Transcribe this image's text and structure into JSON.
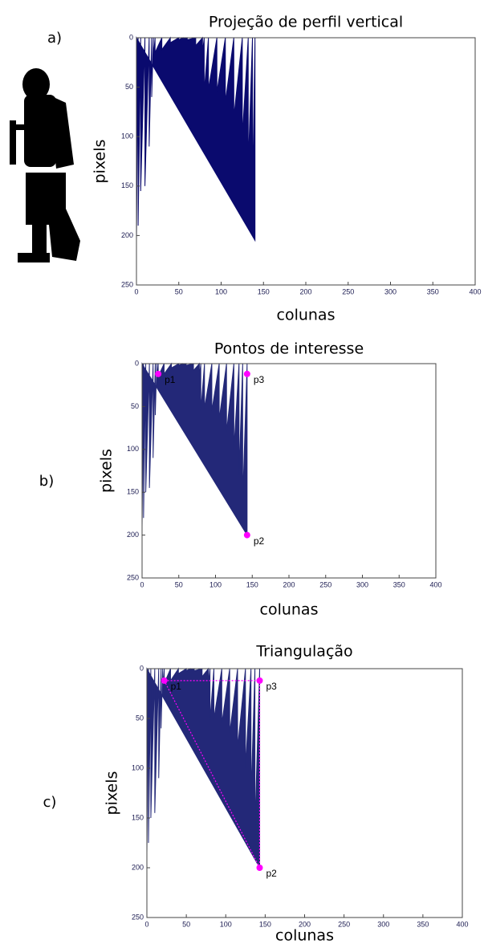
{
  "chart_data": [
    {
      "type": "area",
      "label": "a)",
      "title": "Projeção de perfil vertical",
      "x_label": "colunas",
      "y_label": "pixels",
      "xlim": [
        0,
        400
      ],
      "xticks": [
        0,
        50,
        100,
        150,
        200,
        250,
        300,
        350,
        400
      ],
      "ylim": [
        250,
        0
      ],
      "yticks": [
        0,
        50,
        100,
        150,
        200,
        250
      ],
      "series": [
        {
          "color": "#0a0a6e",
          "x": [
            0,
            2,
            5,
            10,
            15,
            18,
            20,
            22,
            30,
            40,
            50,
            55,
            60,
            70,
            78,
            80,
            85,
            95,
            105,
            115,
            125,
            132,
            137,
            140
          ],
          "values": [
            205,
            190,
            155,
            150,
            110,
            60,
            20,
            15,
            12,
            5,
            2,
            1,
            2,
            8,
            15,
            55,
            52,
            55,
            65,
            80,
            100,
            130,
            160,
            205
          ]
        }
      ]
    },
    {
      "type": "area",
      "label": "b)",
      "title": "Pontos de interesse",
      "x_label": "colunas",
      "y_label": "pixels",
      "xlim": [
        0,
        400
      ],
      "xticks": [
        0,
        50,
        100,
        150,
        200,
        250,
        300,
        350,
        400
      ],
      "ylim": [
        250,
        0
      ],
      "yticks": [
        0,
        50,
        100,
        150,
        200,
        250
      ],
      "series": [
        {
          "color": "#232878",
          "x": [
            0,
            2,
            5,
            10,
            15,
            18,
            20,
            22,
            30,
            40,
            50,
            55,
            60,
            70,
            78,
            80,
            85,
            95,
            105,
            115,
            125,
            132,
            137,
            143
          ],
          "values": [
            190,
            180,
            150,
            145,
            110,
            60,
            20,
            15,
            12,
            5,
            2,
            1,
            2,
            8,
            15,
            55,
            52,
            55,
            65,
            80,
            100,
            130,
            160,
            200
          ]
        }
      ],
      "points": {
        "color": "#ff00ff",
        "connect": false,
        "names": [
          "p1",
          "p3",
          "p2"
        ],
        "x": [
          22,
          143,
          143
        ],
        "values": [
          12,
          12,
          200
        ]
      }
    },
    {
      "type": "area",
      "label": "c)",
      "title": "Triangulação",
      "x_label": "colunas",
      "y_label": "pixels",
      "xlim": [
        0,
        400
      ],
      "xticks": [
        0,
        50,
        100,
        150,
        200,
        250,
        300,
        350,
        400
      ],
      "ylim": [
        250,
        0
      ],
      "yticks": [
        0,
        50,
        100,
        150,
        200,
        250
      ],
      "series": [
        {
          "color": "#232878",
          "x": [
            0,
            2,
            5,
            10,
            15,
            18,
            20,
            22,
            30,
            40,
            50,
            55,
            60,
            70,
            78,
            80,
            85,
            95,
            105,
            115,
            125,
            132,
            137,
            143
          ],
          "values": [
            185,
            175,
            150,
            145,
            110,
            60,
            20,
            15,
            12,
            5,
            2,
            1,
            2,
            8,
            15,
            52,
            50,
            55,
            65,
            80,
            100,
            130,
            160,
            200
          ]
        }
      ],
      "points": {
        "color": "#ff00ff",
        "connect": true,
        "names": [
          "p1",
          "p3",
          "p2"
        ],
        "x": [
          22,
          143,
          143
        ],
        "values": [
          12,
          12,
          200
        ]
      }
    }
  ]
}
